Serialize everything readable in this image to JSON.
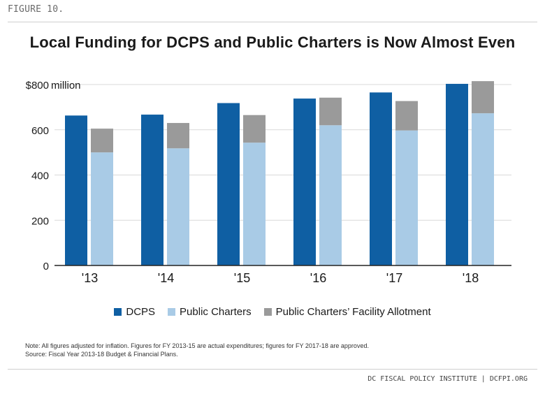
{
  "figure_label": "FIGURE 10.",
  "footer": "DC FISCAL POLICY INSTITUTE | DCFPI.ORG",
  "notes": {
    "line1": "Note: All figures adjusted for inflation. Figures for FY 2013-15 are actual expenditures; figures for FY 2017-18 are approved.",
    "line2": "Source: Fiscal Year 2013-18 Budget & Financial Plans."
  },
  "colors": {
    "dcps": "#0f5fa3",
    "charters": "#a9cbe6",
    "facility": "#9a9a9a"
  },
  "chart_data": {
    "type": "bar",
    "title": "Local Funding for DCPS and Public Charters is Now Almost Even",
    "xlabel": "",
    "ylabel": "",
    "y_unit_label": "$800 million",
    "ylim": [
      0,
      800
    ],
    "yticks": [
      0,
      200,
      400,
      600,
      800
    ],
    "ytick_labels": [
      "0",
      "200",
      "400",
      "600",
      "$800"
    ],
    "grid": true,
    "legend_position": "bottom",
    "categories": [
      "'13",
      "'14",
      "'15",
      "'16",
      "'17",
      "'18"
    ],
    "series": [
      {
        "name": "DCPS",
        "stack": "dcps",
        "values": [
          663,
          667,
          718,
          738,
          765,
          803
        ]
      },
      {
        "name": "Public Charters",
        "stack": "charters",
        "values": [
          500,
          518,
          543,
          620,
          597,
          673
        ]
      },
      {
        "name": "Public Charters’ Facility Allotment",
        "stack": "charters",
        "values": [
          105,
          112,
          122,
          122,
          130,
          142
        ]
      }
    ]
  }
}
